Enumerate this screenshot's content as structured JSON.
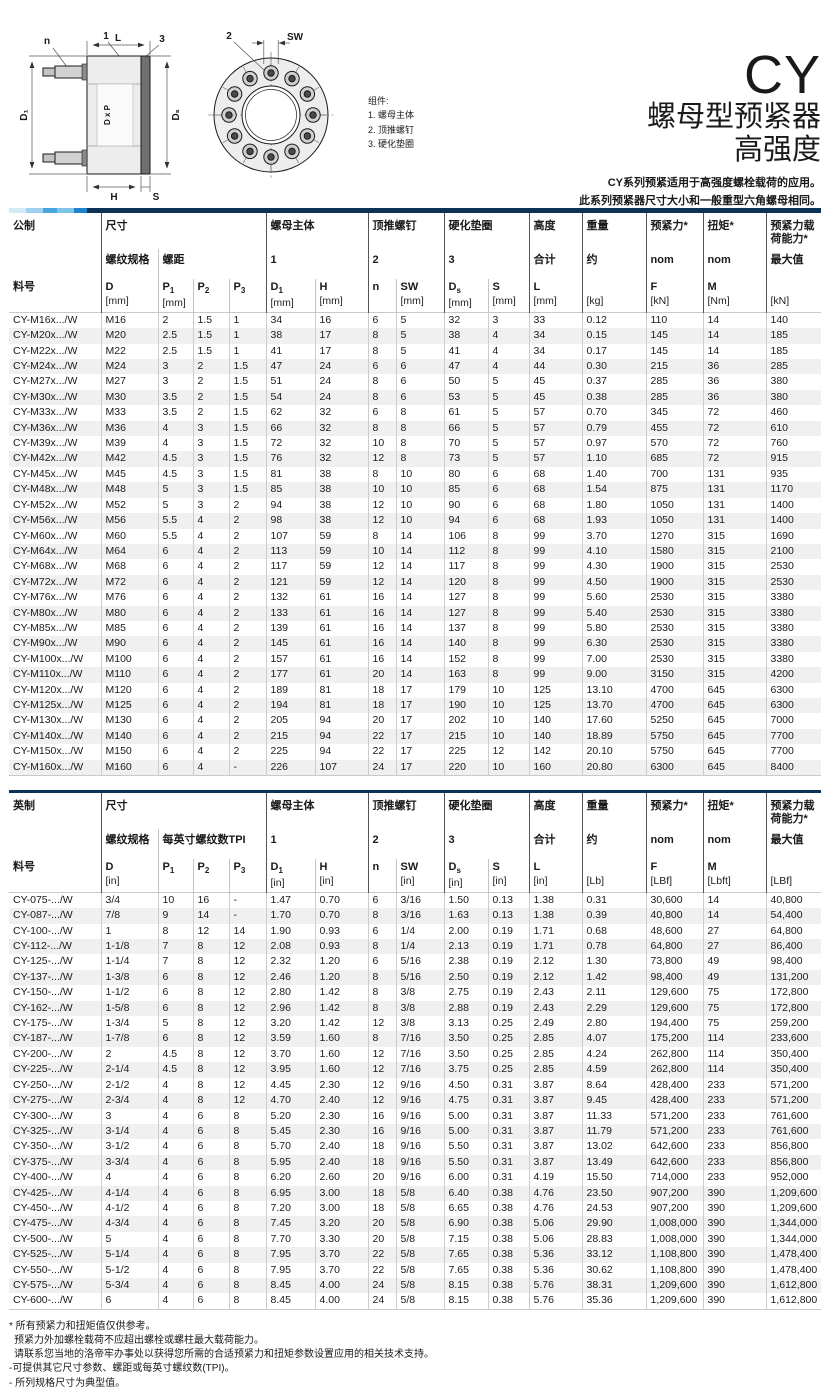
{
  "header": {
    "series": "CY",
    "type_line": "螺母型预紧器",
    "strength_line": "高强度",
    "desc1": "CY系列预紧适用于高强度螺栓载荷的应用。",
    "desc2": "此系列预紧器尺寸大小和一般重型六角螺母相同。"
  },
  "drawing": {
    "legend_title": "组件:",
    "legend": [
      "1. 螺母主体",
      "2. 顶推螺钉",
      "3. 硬化垫圈"
    ],
    "labels": {
      "n": "n",
      "L": "L",
      "one": "1",
      "three": "3",
      "two": "2",
      "sw": "SW",
      "d1": "D₁",
      "dxp": "D x P",
      "ds": "Dₛ",
      "h": "H",
      "s": "S"
    }
  },
  "brand": {
    "bar": {
      "segments": [
        {
          "c": "#d3e9f7",
          "w": 17
        },
        {
          "c": "#9fd0ef",
          "w": 17
        },
        {
          "c": "#47a5e0",
          "w": 14
        },
        {
          "c": "#7fc2ea",
          "w": 17
        },
        {
          "c": "#1f83c9",
          "w": 13
        }
      ],
      "navy": "#0d3257"
    },
    "bar_thin": {
      "segments": [],
      "navy": "#0d3257"
    }
  },
  "metric": {
    "h1": [
      "公制",
      "尺寸",
      "螺母主体",
      "顶推螺钉",
      "硬化垫圈",
      "高度",
      "重量",
      "预紧力*",
      "扭矩*",
      "预紧力载荷能力*"
    ],
    "h2": [
      "螺纹规格",
      "螺距",
      "1",
      "2",
      "3",
      "合计",
      "约",
      "nom",
      "nom",
      "最大值"
    ],
    "subcols": [
      {
        "b": "料号",
        "s": "",
        "u": ""
      },
      {
        "b": "D",
        "s": "",
        "u": "[mm]"
      },
      {
        "b": "P",
        "s": "1",
        "u": "[mm]"
      },
      {
        "b": "P",
        "s": "2",
        "u": ""
      },
      {
        "b": "P",
        "s": "3",
        "u": ""
      },
      {
        "b": "D",
        "s": "1",
        "u": "[mm]"
      },
      {
        "b": "H",
        "s": "",
        "u": "[mm]"
      },
      {
        "b": "n",
        "s": "",
        "u": ""
      },
      {
        "b": "SW",
        "s": "",
        "u": "[mm]"
      },
      {
        "b": "D",
        "s": "s",
        "u": "[mm]"
      },
      {
        "b": "S",
        "s": "",
        "u": "[mm]"
      },
      {
        "b": "L",
        "s": "",
        "u": "[mm]"
      },
      {
        "b": "",
        "s": "",
        "u": "[kg]"
      },
      {
        "b": "F",
        "s": "",
        "u": "[kN]"
      },
      {
        "b": "M",
        "s": "",
        "u": "[Nm]"
      },
      {
        "b": "",
        "s": "",
        "u": "[kN]"
      }
    ],
    "rows": [
      [
        "CY-M16x.../W",
        "M16",
        "2",
        "1.5",
        "1",
        "34",
        "16",
        "6",
        "5",
        "32",
        "3",
        "33",
        "0.12",
        "110",
        "14",
        "140"
      ],
      [
        "CY-M20x.../W",
        "M20",
        "2.5",
        "1.5",
        "1",
        "38",
        "17",
        "8",
        "5",
        "38",
        "4",
        "34",
        "0.15",
        "145",
        "14",
        "185"
      ],
      [
        "CY-M22x.../W",
        "M22",
        "2.5",
        "1.5",
        "1",
        "41",
        "17",
        "8",
        "5",
        "41",
        "4",
        "34",
        "0.17",
        "145",
        "14",
        "185"
      ],
      [
        "CY-M24x.../W",
        "M24",
        "3",
        "2",
        "1.5",
        "47",
        "24",
        "6",
        "6",
        "47",
        "4",
        "44",
        "0.30",
        "215",
        "36",
        "285"
      ],
      [
        "CY-M27x.../W",
        "M27",
        "3",
        "2",
        "1.5",
        "51",
        "24",
        "8",
        "6",
        "50",
        "5",
        "45",
        "0.37",
        "285",
        "36",
        "380"
      ],
      [
        "CY-M30x.../W",
        "M30",
        "3.5",
        "2",
        "1.5",
        "54",
        "24",
        "8",
        "6",
        "53",
        "5",
        "45",
        "0.38",
        "285",
        "36",
        "380"
      ],
      [
        "CY-M33x.../W",
        "M33",
        "3.5",
        "2",
        "1.5",
        "62",
        "32",
        "6",
        "8",
        "61",
        "5",
        "57",
        "0.70",
        "345",
        "72",
        "460"
      ],
      [
        "CY-M36x.../W",
        "M36",
        "4",
        "3",
        "1.5",
        "66",
        "32",
        "8",
        "8",
        "66",
        "5",
        "57",
        "0.79",
        "455",
        "72",
        "610"
      ],
      [
        "CY-M39x.../W",
        "M39",
        "4",
        "3",
        "1.5",
        "72",
        "32",
        "10",
        "8",
        "70",
        "5",
        "57",
        "0.97",
        "570",
        "72",
        "760"
      ],
      [
        "CY-M42x.../W",
        "M42",
        "4.5",
        "3",
        "1.5",
        "76",
        "32",
        "12",
        "8",
        "73",
        "5",
        "57",
        "1.10",
        "685",
        "72",
        "915"
      ],
      [
        "CY-M45x.../W",
        "M45",
        "4.5",
        "3",
        "1.5",
        "81",
        "38",
        "8",
        "10",
        "80",
        "6",
        "68",
        "1.40",
        "700",
        "131",
        "935"
      ],
      [
        "CY-M48x.../W",
        "M48",
        "5",
        "3",
        "1.5",
        "85",
        "38",
        "10",
        "10",
        "85",
        "6",
        "68",
        "1.54",
        "875",
        "131",
        "1170"
      ],
      [
        "CY-M52x.../W",
        "M52",
        "5",
        "3",
        "2",
        "94",
        "38",
        "12",
        "10",
        "90",
        "6",
        "68",
        "1.80",
        "1050",
        "131",
        "1400"
      ],
      [
        "CY-M56x.../W",
        "M56",
        "5.5",
        "4",
        "2",
        "98",
        "38",
        "12",
        "10",
        "94",
        "6",
        "68",
        "1.93",
        "1050",
        "131",
        "1400"
      ],
      [
        "CY-M60x.../W",
        "M60",
        "5.5",
        "4",
        "2",
        "107",
        "59",
        "8",
        "14",
        "106",
        "8",
        "99",
        "3.70",
        "1270",
        "315",
        "1690"
      ],
      [
        "CY-M64x.../W",
        "M64",
        "6",
        "4",
        "2",
        "113",
        "59",
        "10",
        "14",
        "112",
        "8",
        "99",
        "4.10",
        "1580",
        "315",
        "2100"
      ],
      [
        "CY-M68x.../W",
        "M68",
        "6",
        "4",
        "2",
        "117",
        "59",
        "12",
        "14",
        "117",
        "8",
        "99",
        "4.30",
        "1900",
        "315",
        "2530"
      ],
      [
        "CY-M72x.../W",
        "M72",
        "6",
        "4",
        "2",
        "121",
        "59",
        "12",
        "14",
        "120",
        "8",
        "99",
        "4.50",
        "1900",
        "315",
        "2530"
      ],
      [
        "CY-M76x.../W",
        "M76",
        "6",
        "4",
        "2",
        "132",
        "61",
        "16",
        "14",
        "127",
        "8",
        "99",
        "5.60",
        "2530",
        "315",
        "3380"
      ],
      [
        "CY-M80x.../W",
        "M80",
        "6",
        "4",
        "2",
        "133",
        "61",
        "16",
        "14",
        "127",
        "8",
        "99",
        "5.40",
        "2530",
        "315",
        "3380"
      ],
      [
        "CY-M85x.../W",
        "M85",
        "6",
        "4",
        "2",
        "139",
        "61",
        "16",
        "14",
        "137",
        "8",
        "99",
        "5.80",
        "2530",
        "315",
        "3380"
      ],
      [
        "CY-M90x.../W",
        "M90",
        "6",
        "4",
        "2",
        "145",
        "61",
        "16",
        "14",
        "140",
        "8",
        "99",
        "6.30",
        "2530",
        "315",
        "3380"
      ],
      [
        "CY-M100x.../W",
        "M100",
        "6",
        "4",
        "2",
        "157",
        "61",
        "16",
        "14",
        "152",
        "8",
        "99",
        "7.00",
        "2530",
        "315",
        "3380"
      ],
      [
        "CY-M110x.../W",
        "M110",
        "6",
        "4",
        "2",
        "177",
        "61",
        "20",
        "14",
        "163",
        "8",
        "99",
        "9.00",
        "3150",
        "315",
        "4200"
      ],
      [
        "CY-M120x.../W",
        "M120",
        "6",
        "4",
        "2",
        "189",
        "81",
        "18",
        "17",
        "179",
        "10",
        "125",
        "13.10",
        "4700",
        "645",
        "6300"
      ],
      [
        "CY-M125x.../W",
        "M125",
        "6",
        "4",
        "2",
        "194",
        "81",
        "18",
        "17",
        "190",
        "10",
        "125",
        "13.70",
        "4700",
        "645",
        "6300"
      ],
      [
        "CY-M130x.../W",
        "M130",
        "6",
        "4",
        "2",
        "205",
        "94",
        "20",
        "17",
        "202",
        "10",
        "140",
        "17.60",
        "5250",
        "645",
        "7000"
      ],
      [
        "CY-M140x.../W",
        "M140",
        "6",
        "4",
        "2",
        "215",
        "94",
        "22",
        "17",
        "215",
        "10",
        "140",
        "18.89",
        "5750",
        "645",
        "7700"
      ],
      [
        "CY-M150x.../W",
        "M150",
        "6",
        "4",
        "2",
        "225",
        "94",
        "22",
        "17",
        "225",
        "12",
        "142",
        "20.10",
        "5750",
        "645",
        "7700"
      ],
      [
        "CY-M160x.../W",
        "M160",
        "6",
        "4",
        "-",
        "226",
        "107",
        "24",
        "17",
        "220",
        "10",
        "160",
        "20.80",
        "6300",
        "645",
        "8400"
      ]
    ]
  },
  "imperial": {
    "h1": [
      "英制",
      "尺寸",
      "螺母主体",
      "顶推螺钉",
      "硬化垫圈",
      "高度",
      "重量",
      "预紧力*",
      "扭矩*",
      "预紧力载荷能力*"
    ],
    "h2": [
      "螺纹规格",
      "每英寸螺纹数TPI",
      "1",
      "2",
      "3",
      "合计",
      "约",
      "nom",
      "nom",
      "最大值"
    ],
    "subcols": [
      {
        "b": "料号",
        "s": "",
        "u": ""
      },
      {
        "b": "D",
        "s": "",
        "u": "[in]"
      },
      {
        "b": "P",
        "s": "1",
        "u": ""
      },
      {
        "b": "P",
        "s": "2",
        "u": ""
      },
      {
        "b": "P",
        "s": "3",
        "u": ""
      },
      {
        "b": "D",
        "s": "1",
        "u": "[in]"
      },
      {
        "b": "H",
        "s": "",
        "u": "[in]"
      },
      {
        "b": "n",
        "s": "",
        "u": ""
      },
      {
        "b": "SW",
        "s": "",
        "u": "[in]"
      },
      {
        "b": "D",
        "s": "s",
        "u": "[in]"
      },
      {
        "b": "S",
        "s": "",
        "u": "[in]"
      },
      {
        "b": "L",
        "s": "",
        "u": "[in]"
      },
      {
        "b": "",
        "s": "",
        "u": "[Lb]"
      },
      {
        "b": "F",
        "s": "",
        "u": "[LBf]"
      },
      {
        "b": "M",
        "s": "",
        "u": "[Lbft]"
      },
      {
        "b": "",
        "s": "",
        "u": "[LBf]"
      }
    ],
    "rows": [
      [
        "CY-075-.../W",
        "3/4",
        "10",
        "16",
        "-",
        "1.47",
        "0.70",
        "6",
        "3/16",
        "1.50",
        "0.13",
        "1.38",
        "0.31",
        "30,600",
        "14",
        "40,800"
      ],
      [
        "CY-087-.../W",
        "7/8",
        "9",
        "14",
        "-",
        "1.70",
        "0.70",
        "8",
        "3/16",
        "1.63",
        "0.13",
        "1.38",
        "0.39",
        "40,800",
        "14",
        "54,400"
      ],
      [
        "CY-100-.../W",
        "1",
        "8",
        "12",
        "14",
        "1.90",
        "0.93",
        "6",
        "1/4",
        "2.00",
        "0.19",
        "1.71",
        "0.68",
        "48,600",
        "27",
        "64,800"
      ],
      [
        "CY-112-.../W",
        "1-1/8",
        "7",
        "8",
        "12",
        "2.08",
        "0.93",
        "8",
        "1/4",
        "2.13",
        "0.19",
        "1.71",
        "0.78",
        "64,800",
        "27",
        "86,400"
      ],
      [
        "CY-125-.../W",
        "1-1/4",
        "7",
        "8",
        "12",
        "2.32",
        "1.20",
        "6",
        "5/16",
        "2.38",
        "0.19",
        "2.12",
        "1.30",
        "73,800",
        "49",
        "98,400"
      ],
      [
        "CY-137-.../W",
        "1-3/8",
        "6",
        "8",
        "12",
        "2.46",
        "1.20",
        "8",
        "5/16",
        "2.50",
        "0.19",
        "2.12",
        "1.42",
        "98,400",
        "49",
        "131,200"
      ],
      [
        "CY-150-.../W",
        "1-1/2",
        "6",
        "8",
        "12",
        "2.80",
        "1.42",
        "8",
        "3/8",
        "2.75",
        "0.19",
        "2.43",
        "2.11",
        "129,600",
        "75",
        "172,800"
      ],
      [
        "CY-162-.../W",
        "1-5/8",
        "6",
        "8",
        "12",
        "2.96",
        "1.42",
        "8",
        "3/8",
        "2.88",
        "0.19",
        "2.43",
        "2.29",
        "129,600",
        "75",
        "172,800"
      ],
      [
        "CY-175-.../W",
        "1-3/4",
        "5",
        "8",
        "12",
        "3.20",
        "1.42",
        "12",
        "3/8",
        "3.13",
        "0.25",
        "2.49",
        "2.80",
        "194,400",
        "75",
        "259,200"
      ],
      [
        "CY-187-.../W",
        "1-7/8",
        "6",
        "8",
        "12",
        "3.59",
        "1.60",
        "8",
        "7/16",
        "3.50",
        "0.25",
        "2.85",
        "4.07",
        "175,200",
        "114",
        "233,600"
      ],
      [
        "CY-200-.../W",
        "2",
        "4.5",
        "8",
        "12",
        "3.70",
        "1.60",
        "12",
        "7/16",
        "3.50",
        "0.25",
        "2.85",
        "4.24",
        "262,800",
        "114",
        "350,400"
      ],
      [
        "CY-225-.../W",
        "2-1/4",
        "4.5",
        "8",
        "12",
        "3.95",
        "1.60",
        "12",
        "7/16",
        "3.75",
        "0.25",
        "2.85",
        "4.59",
        "262,800",
        "114",
        "350,400"
      ],
      [
        "CY-250-.../W",
        "2-1/2",
        "4",
        "8",
        "12",
        "4.45",
        "2.30",
        "12",
        "9/16",
        "4.50",
        "0.31",
        "3.87",
        "8.64",
        "428,400",
        "233",
        "571,200"
      ],
      [
        "CY-275-.../W",
        "2-3/4",
        "4",
        "8",
        "12",
        "4.70",
        "2.40",
        "12",
        "9/16",
        "4.75",
        "0.31",
        "3.87",
        "9.45",
        "428,400",
        "233",
        "571,200"
      ],
      [
        "CY-300-.../W",
        "3",
        "4",
        "6",
        "8",
        "5.20",
        "2.30",
        "16",
        "9/16",
        "5.00",
        "0.31",
        "3.87",
        "11.33",
        "571,200",
        "233",
        "761,600"
      ],
      [
        "CY-325-.../W",
        "3-1/4",
        "4",
        "6",
        "8",
        "5.45",
        "2.30",
        "16",
        "9/16",
        "5.00",
        "0.31",
        "3.87",
        "11.79",
        "571,200",
        "233",
        "761,600"
      ],
      [
        "CY-350-.../W",
        "3-1/2",
        "4",
        "6",
        "8",
        "5.70",
        "2.40",
        "18",
        "9/16",
        "5.50",
        "0.31",
        "3.87",
        "13.02",
        "642,600",
        "233",
        "856,800"
      ],
      [
        "CY-375-.../W",
        "3-3/4",
        "4",
        "6",
        "8",
        "5.95",
        "2.40",
        "18",
        "9/16",
        "5.50",
        "0.31",
        "3.87",
        "13.49",
        "642,600",
        "233",
        "856,800"
      ],
      [
        "CY-400-.../W",
        "4",
        "4",
        "6",
        "8",
        "6.20",
        "2.60",
        "20",
        "9/16",
        "6.00",
        "0.31",
        "4.19",
        "15.50",
        "714,000",
        "233",
        "952,000"
      ],
      [
        "CY-425-.../W",
        "4-1/4",
        "4",
        "6",
        "8",
        "6.95",
        "3.00",
        "18",
        "5/8",
        "6.40",
        "0.38",
        "4.76",
        "23.50",
        "907,200",
        "390",
        "1,209,600"
      ],
      [
        "CY-450-.../W",
        "4-1/2",
        "4",
        "6",
        "8",
        "7.20",
        "3.00",
        "18",
        "5/8",
        "6.65",
        "0.38",
        "4.76",
        "24.53",
        "907,200",
        "390",
        "1,209,600"
      ],
      [
        "CY-475-.../W",
        "4-3/4",
        "4",
        "6",
        "8",
        "7.45",
        "3.20",
        "20",
        "5/8",
        "6.90",
        "0.38",
        "5.06",
        "29.90",
        "1,008,000",
        "390",
        "1,344,000"
      ],
      [
        "CY-500-.../W",
        "5",
        "4",
        "6",
        "8",
        "7.70",
        "3.30",
        "20",
        "5/8",
        "7.15",
        "0.38",
        "5.06",
        "28.83",
        "1,008,000",
        "390",
        "1,344,000"
      ],
      [
        "CY-525-.../W",
        "5-1/4",
        "4",
        "6",
        "8",
        "7.95",
        "3.70",
        "22",
        "5/8",
        "7.65",
        "0.38",
        "5.36",
        "33.12",
        "1,108,800",
        "390",
        "1,478,400"
      ],
      [
        "CY-550-.../W",
        "5-1/2",
        "4",
        "6",
        "8",
        "7.95",
        "3.70",
        "22",
        "5/8",
        "7.65",
        "0.38",
        "5.36",
        "30.62",
        "1,108,800",
        "390",
        "1,478,400"
      ],
      [
        "CY-575-.../W",
        "5-3/4",
        "4",
        "6",
        "8",
        "8.45",
        "4.00",
        "24",
        "5/8",
        "8.15",
        "0.38",
        "5.76",
        "38.31",
        "1,209,600",
        "390",
        "1,612,800"
      ],
      [
        "CY-600-.../W",
        "6",
        "4",
        "6",
        "8",
        "8.45",
        "4.00",
        "24",
        "5/8",
        "8.15",
        "0.38",
        "5.76",
        "35.36",
        "1,209,600",
        "390",
        "1,612,800"
      ]
    ]
  },
  "notes": [
    "* 所有预紧力和扭矩值仅供参考。",
    "预紧力外加螺栓载荷不应超出螺栓或螺柱最大载荷能力。",
    "请联系您当地的洛帝牢办事处以获得您所需的合适预紧力和扭矩参数设置应用的相关技术支持。",
    "-可提供其它尺寸参数、螺距或每英寸螺纹数(TPI)。",
    "- 所列规格尺寸为典型值。"
  ]
}
